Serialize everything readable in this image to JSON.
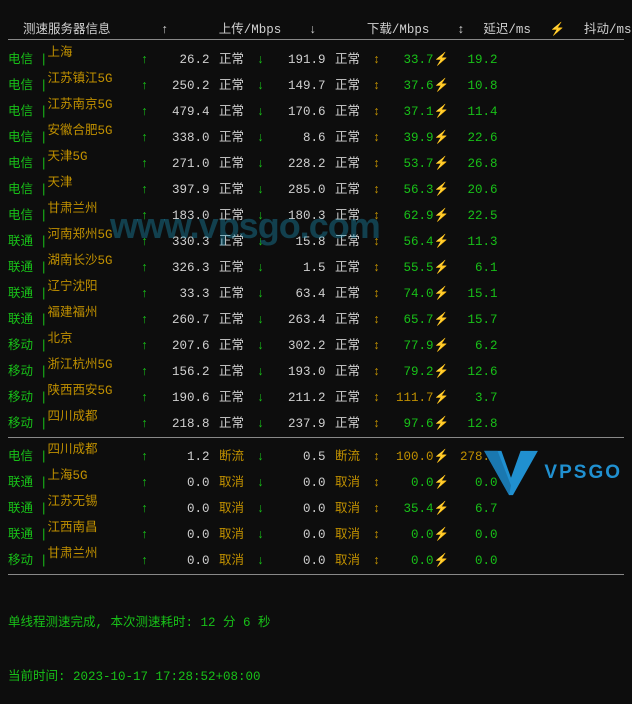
{
  "header": {
    "server": "测速服务器信息",
    "upload": "上传/Mbps",
    "download": "下载/Mbps",
    "latency": "延迟/ms",
    "jitter": "抖动/ms"
  },
  "rows_main": [
    {
      "isp": "电信",
      "server": "上海",
      "upload": "26.2",
      "status_up": "正常",
      "download": "191.9",
      "status_down": "正常",
      "latency": "33.7",
      "jitter": "19.2"
    },
    {
      "isp": "电信",
      "server": "江苏镇江5G",
      "upload": "250.2",
      "status_up": "正常",
      "download": "149.7",
      "status_down": "正常",
      "latency": "37.6",
      "jitter": "10.8"
    },
    {
      "isp": "电信",
      "server": "江苏南京5G",
      "upload": "479.4",
      "status_up": "正常",
      "download": "170.6",
      "status_down": "正常",
      "latency": "37.1",
      "jitter": "11.4"
    },
    {
      "isp": "电信",
      "server": "安徽合肥5G",
      "upload": "338.0",
      "status_up": "正常",
      "download": "8.6",
      "status_down": "正常",
      "latency": "39.9",
      "jitter": "22.6"
    },
    {
      "isp": "电信",
      "server": "天津5G",
      "upload": "271.0",
      "status_up": "正常",
      "download": "228.2",
      "status_down": "正常",
      "latency": "53.7",
      "jitter": "26.8"
    },
    {
      "isp": "电信",
      "server": "天津",
      "upload": "397.9",
      "status_up": "正常",
      "download": "285.0",
      "status_down": "正常",
      "latency": "56.3",
      "jitter": "20.6"
    },
    {
      "isp": "电信",
      "server": "甘肃兰州",
      "upload": "183.0",
      "status_up": "正常",
      "download": "180.3",
      "status_down": "正常",
      "latency": "62.9",
      "jitter": "22.5"
    },
    {
      "isp": "联通",
      "server": "河南郑州5G",
      "upload": "330.3",
      "status_up": "正常",
      "download": "15.8",
      "status_down": "正常",
      "latency": "56.4",
      "jitter": "11.3"
    },
    {
      "isp": "联通",
      "server": "湖南长沙5G",
      "upload": "326.3",
      "status_up": "正常",
      "download": "1.5",
      "status_down": "正常",
      "latency": "55.5",
      "jitter": "6.1"
    },
    {
      "isp": "联通",
      "server": "辽宁沈阳",
      "upload": "33.3",
      "status_up": "正常",
      "download": "63.4",
      "status_down": "正常",
      "latency": "74.0",
      "jitter": "15.1"
    },
    {
      "isp": "联通",
      "server": "福建福州",
      "upload": "260.7",
      "status_up": "正常",
      "download": "263.4",
      "status_down": "正常",
      "latency": "65.7",
      "jitter": "15.7"
    },
    {
      "isp": "移动",
      "server": "北京",
      "upload": "207.6",
      "status_up": "正常",
      "download": "302.2",
      "status_down": "正常",
      "latency": "77.9",
      "jitter": "6.2"
    },
    {
      "isp": "移动",
      "server": "浙江杭州5G",
      "upload": "156.2",
      "status_up": "正常",
      "download": "193.0",
      "status_down": "正常",
      "latency": "79.2",
      "jitter": "12.6"
    },
    {
      "isp": "移动",
      "server": "陕西西安5G",
      "upload": "190.6",
      "status_up": "正常",
      "download": "211.2",
      "status_down": "正常",
      "latency": "111.7",
      "latency_high": true,
      "jitter": "3.7"
    },
    {
      "isp": "移动",
      "server": "四川成都",
      "upload": "218.8",
      "status_up": "正常",
      "download": "237.9",
      "status_down": "正常",
      "latency": "97.6",
      "jitter": "12.8"
    }
  ],
  "rows_fail": [
    {
      "isp": "电信",
      "server": "四川成都",
      "upload": "1.2",
      "status_up": "断流",
      "status_up_cls": "disconn",
      "download": "0.5",
      "status_down": "断流",
      "status_down_cls": "disconn",
      "latency": "100.0",
      "latency_high": true,
      "jitter": "278.4",
      "jitter_high": true
    },
    {
      "isp": "联通",
      "server": "上海5G",
      "upload": "0.0",
      "status_up": "取消",
      "status_up_cls": "cancel",
      "download": "0.0",
      "status_down": "取消",
      "status_down_cls": "cancel",
      "latency": "0.0",
      "jitter": "0.0"
    },
    {
      "isp": "联通",
      "server": "江苏无锡",
      "upload": "0.0",
      "status_up": "取消",
      "status_up_cls": "cancel",
      "download": "0.0",
      "status_down": "取消",
      "status_down_cls": "cancel",
      "latency": "35.4",
      "jitter": "6.7"
    },
    {
      "isp": "联通",
      "server": "江西南昌",
      "upload": "0.0",
      "status_up": "取消",
      "status_up_cls": "cancel",
      "download": "0.0",
      "status_down": "取消",
      "status_down_cls": "cancel",
      "latency": "0.0",
      "jitter": "0.0"
    },
    {
      "isp": "移动",
      "server": "甘肃兰州",
      "upload": "0.0",
      "status_up": "取消",
      "status_up_cls": "cancel",
      "download": "0.0",
      "status_down": "取消",
      "status_down_cls": "cancel",
      "latency": "0.0",
      "jitter": "0.0"
    }
  ],
  "footer": {
    "line1": "单线程测速完成, 本次测速耗时: 12 分 6 秒",
    "line2": "当前时间: 2023-10-17 17:28:52+08:00"
  },
  "watermark": "www.vpsgo.com",
  "logo_text": "VPSGO"
}
